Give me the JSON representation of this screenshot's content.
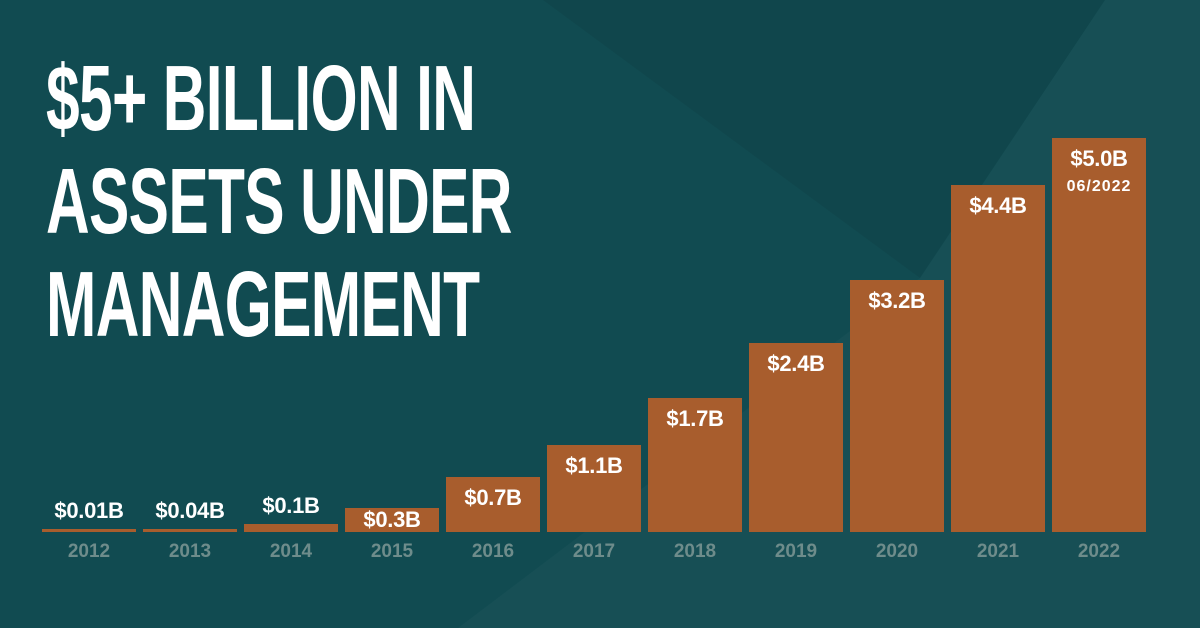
{
  "poster": {
    "title_lines": [
      "$5+ BILLION IN",
      "ASSETS UNDER",
      "MANAGEMENT"
    ]
  },
  "chart_data": {
    "type": "bar",
    "title": "$5+ Billion in Assets Under Management",
    "categories": [
      "2012",
      "2013",
      "2014",
      "2015",
      "2016",
      "2017",
      "2018",
      "2019",
      "2020",
      "2021",
      "2022"
    ],
    "values": [
      0.01,
      0.04,
      0.1,
      0.3,
      0.7,
      1.1,
      1.7,
      2.4,
      3.2,
      4.4,
      5.0
    ],
    "bar_labels": [
      "$0.01B",
      "$0.04B",
      "$0.1B",
      "$0.3B",
      "$0.7B",
      "$1.1B",
      "$1.7B",
      "$2.4B",
      "$3.2B",
      "$4.4B",
      "$5.0B"
    ],
    "last_bar_sublabel": "06/2022",
    "xlabel": "",
    "ylabel": "",
    "ylim": [
      0,
      5.0
    ],
    "grid": false,
    "legend": null,
    "colors": {
      "background": "#114b51",
      "bar": "#a85d2d",
      "value_label": "#ffffff",
      "year_label": "#6e8c8b",
      "title": "#ffffff"
    }
  }
}
